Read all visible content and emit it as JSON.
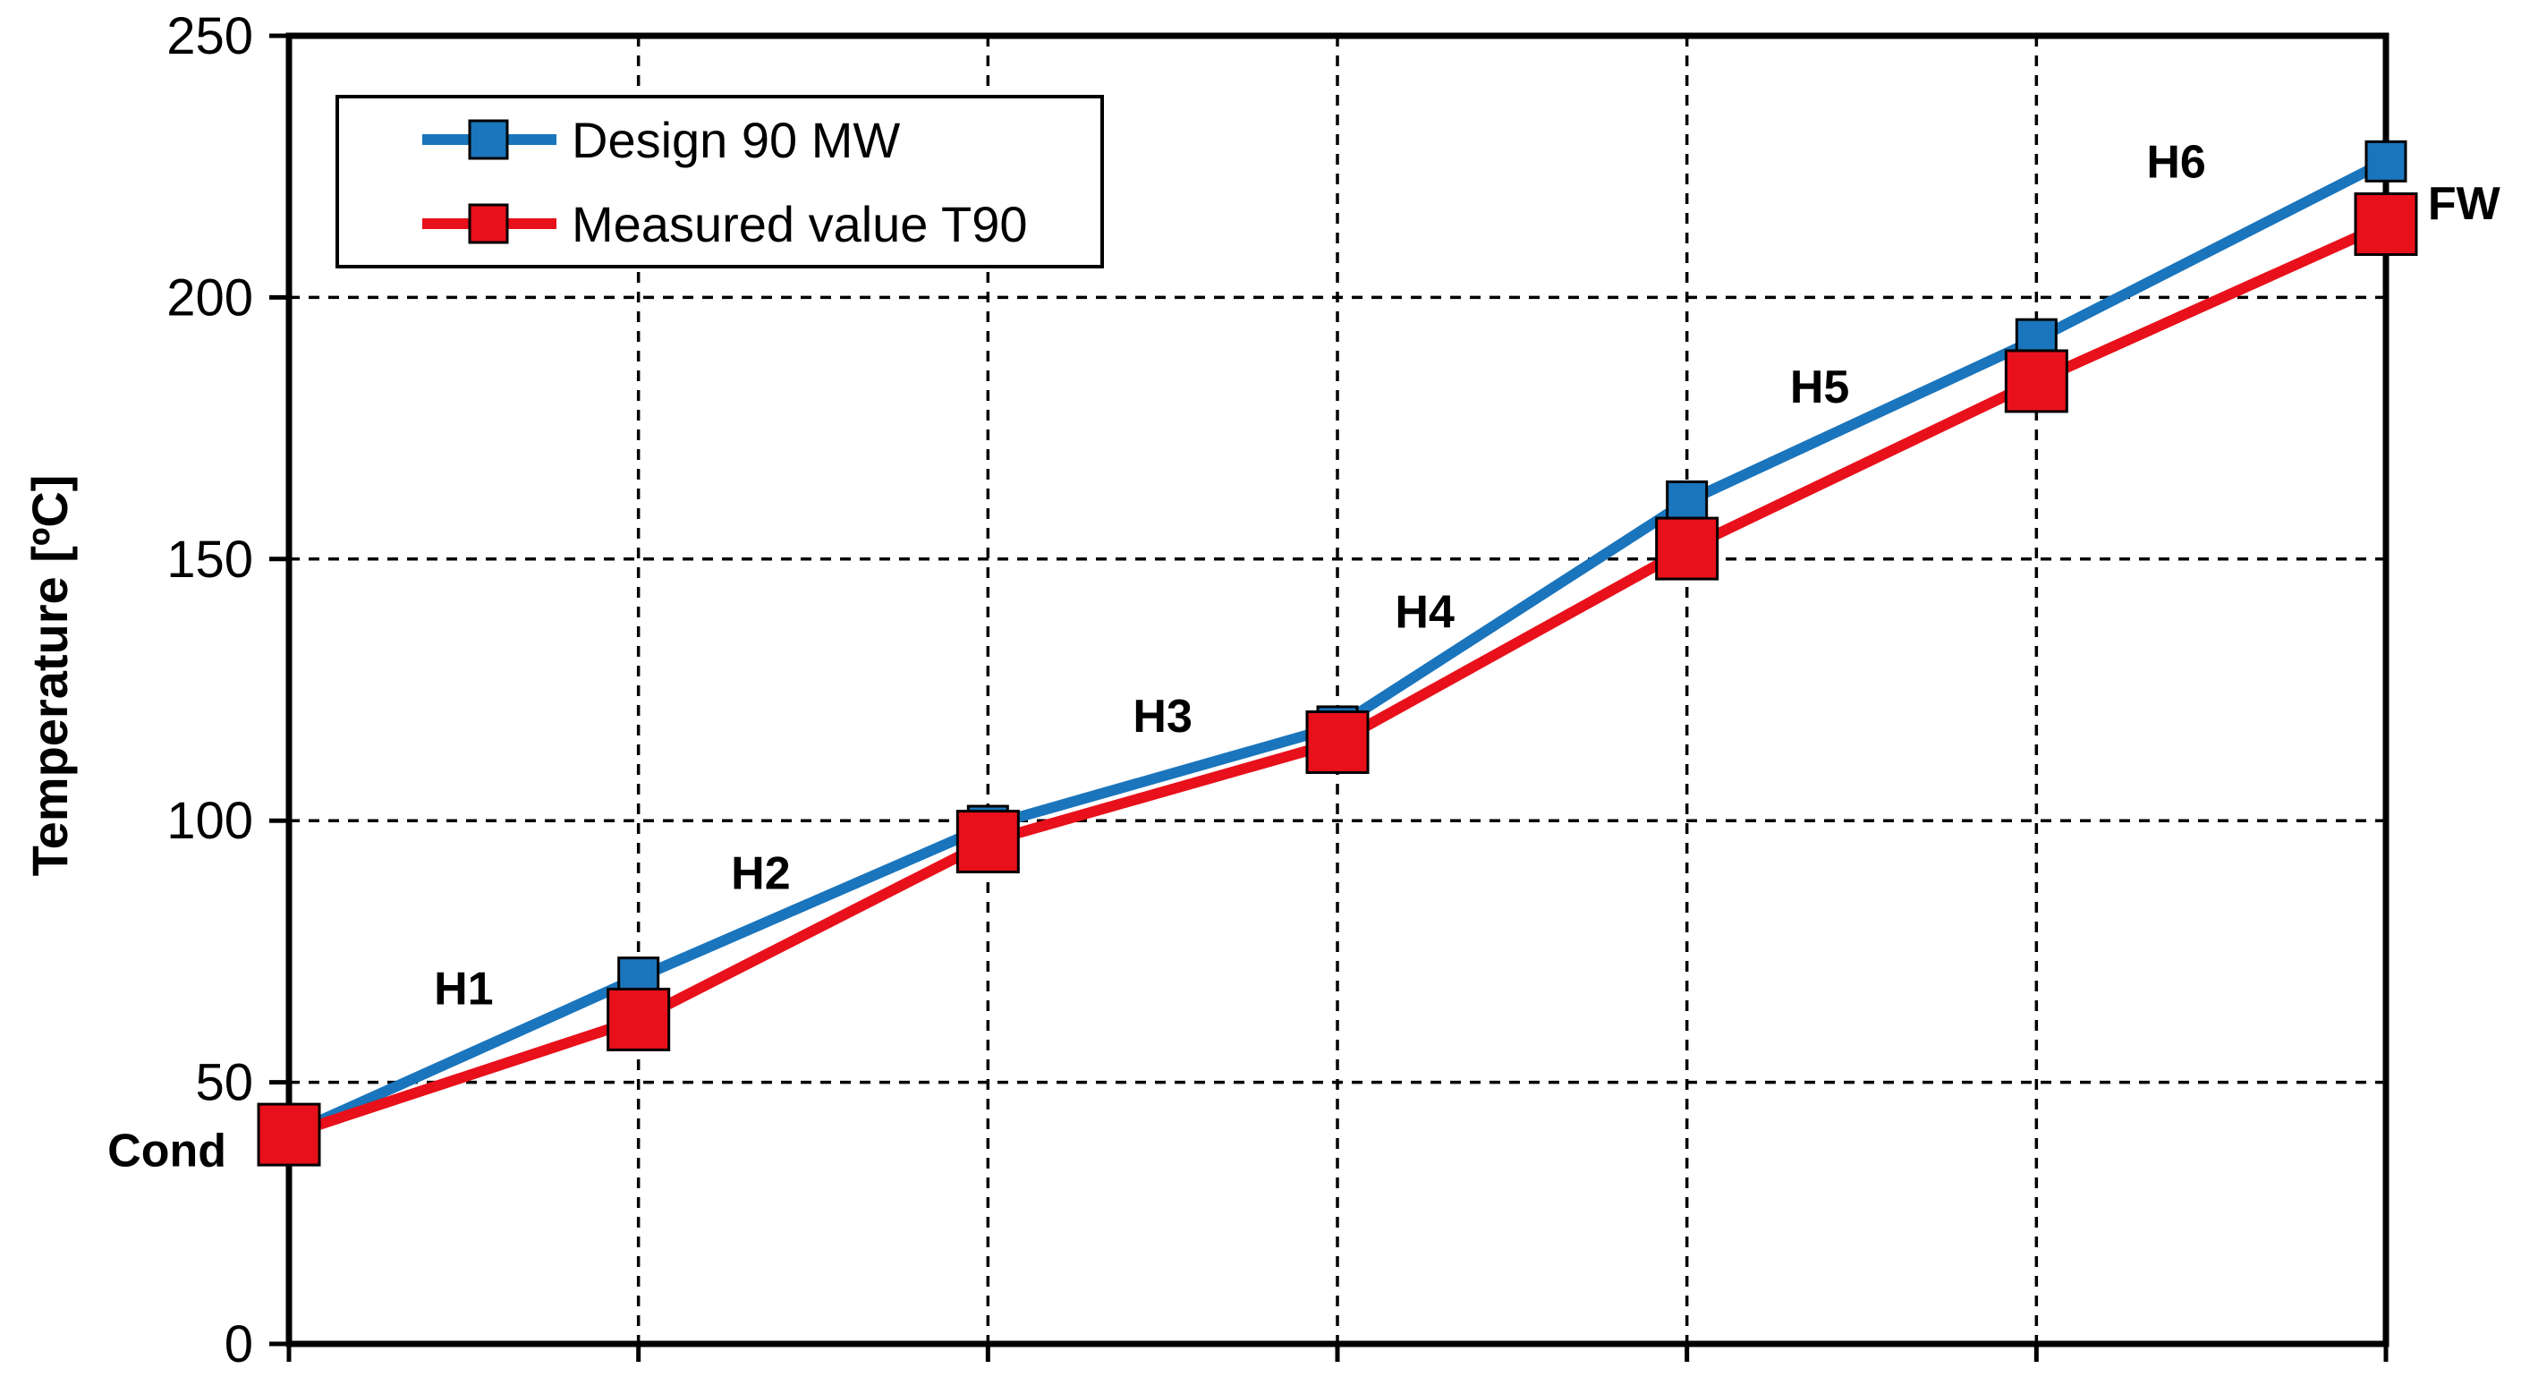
{
  "chart_data": {
    "type": "line",
    "x": [
      0,
      1,
      2,
      3,
      4,
      5,
      6
    ],
    "ylabel": "Temperature [ºC]",
    "ylim": [
      0,
      250
    ],
    "yticks": [
      0,
      50,
      100,
      150,
      200,
      250
    ],
    "grid": true,
    "legend_position": "top-left",
    "series": [
      {
        "name": "Design 90 MW",
        "color": "#1a75bc",
        "values": [
          40,
          70,
          99,
          118,
          161,
          192,
          226
        ]
      },
      {
        "name": "Measured value T90",
        "color": "#e8101a",
        "values": [
          40,
          62,
          96,
          115,
          152,
          184,
          214
        ]
      }
    ],
    "annotations": [
      {
        "text": "Cond",
        "x": 0,
        "y": 37
      },
      {
        "text": "H1",
        "x": 0.5,
        "y": 68
      },
      {
        "text": "H2",
        "x": 1.35,
        "y": 90
      },
      {
        "text": "H3",
        "x": 2.5,
        "y": 120
      },
      {
        "text": "H4",
        "x": 3.25,
        "y": 140
      },
      {
        "text": "H5",
        "x": 4.38,
        "y": 183
      },
      {
        "text": "H6",
        "x": 5.4,
        "y": 226
      },
      {
        "text": "FW",
        "x": 6.12,
        "y": 218
      }
    ]
  }
}
